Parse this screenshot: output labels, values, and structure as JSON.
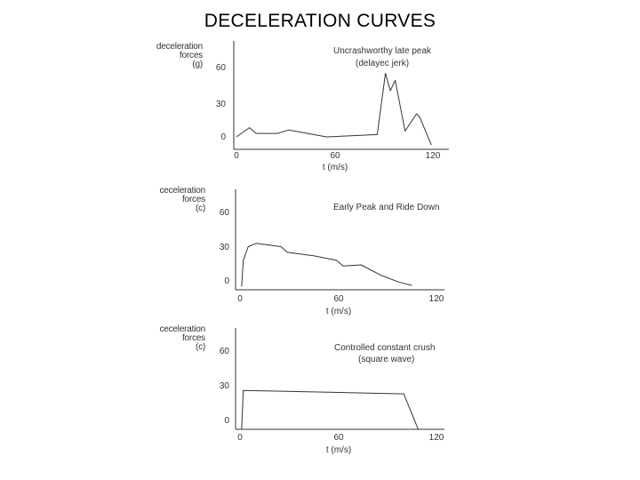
{
  "page": {
    "title": "DECELERATION CURVES"
  },
  "chart_data": [
    {
      "type": "line",
      "annotation": [
        "Uncrashworthy late peak",
        "(delayec jerk)"
      ],
      "ylabel": [
        "deceleration",
        "forces",
        "(g)"
      ],
      "xlabel": "t (m/s)",
      "xlim": [
        0,
        120
      ],
      "ylim": [
        -8,
        68
      ],
      "x_ticks": [
        0,
        60,
        120
      ],
      "y_ticks": [
        0,
        30,
        60
      ],
      "x_tick_labels": [
        "0",
        "60",
        "120"
      ],
      "y_tick_labels": [
        "0",
        "30",
        "60"
      ],
      "grid": false,
      "series": [
        {
          "x": [
            0,
            8,
            12,
            25,
            32,
            55,
            86,
            91,
            94,
            97,
            103,
            110,
            112,
            119
          ],
          "y": [
            0,
            8,
            3,
            3,
            6,
            0,
            2,
            55,
            40,
            49,
            5,
            20,
            17,
            -7
          ]
        }
      ]
    },
    {
      "type": "line",
      "annotation": [
        "Early Peak and Ride Down"
      ],
      "ylabel": [
        "ceceleration",
        "forces",
        "(c)"
      ],
      "xlabel": "t (m/s)",
      "xlim": [
        0,
        120
      ],
      "ylim": [
        -8,
        68
      ],
      "x_ticks": [
        0,
        60,
        120
      ],
      "y_ticks": [
        0,
        30,
        60
      ],
      "x_tick_labels": [
        "0",
        "60",
        "120"
      ],
      "y_tick_labels": [
        "0",
        "30",
        "60"
      ],
      "grid": false,
      "series": [
        {
          "x": [
            1,
            2,
            5,
            10,
            25,
            29,
            45,
            59,
            63,
            74,
            86,
            97,
            105
          ],
          "y": [
            -5,
            18,
            30,
            33,
            30,
            25,
            22,
            18,
            13,
            14,
            5,
            -1,
            -4
          ]
        }
      ]
    },
    {
      "type": "line",
      "annotation": [
        "Controlled constant crush",
        "(square wave)"
      ],
      "ylabel": [
        "ceceleration",
        "forces",
        "(c)"
      ],
      "xlabel": "t (m/s)",
      "xlim": [
        0,
        120
      ],
      "ylim": [
        -8,
        68
      ],
      "x_ticks": [
        0,
        60,
        120
      ],
      "y_ticks": [
        0,
        30,
        60
      ],
      "x_tick_labels": [
        "0",
        "60",
        "120"
      ],
      "y_tick_labels": [
        "0",
        "30",
        "60"
      ],
      "grid": false,
      "series": [
        {
          "x": [
            1,
            2,
            100,
            109
          ],
          "y": [
            -8,
            26,
            23,
            -8
          ]
        }
      ]
    }
  ]
}
